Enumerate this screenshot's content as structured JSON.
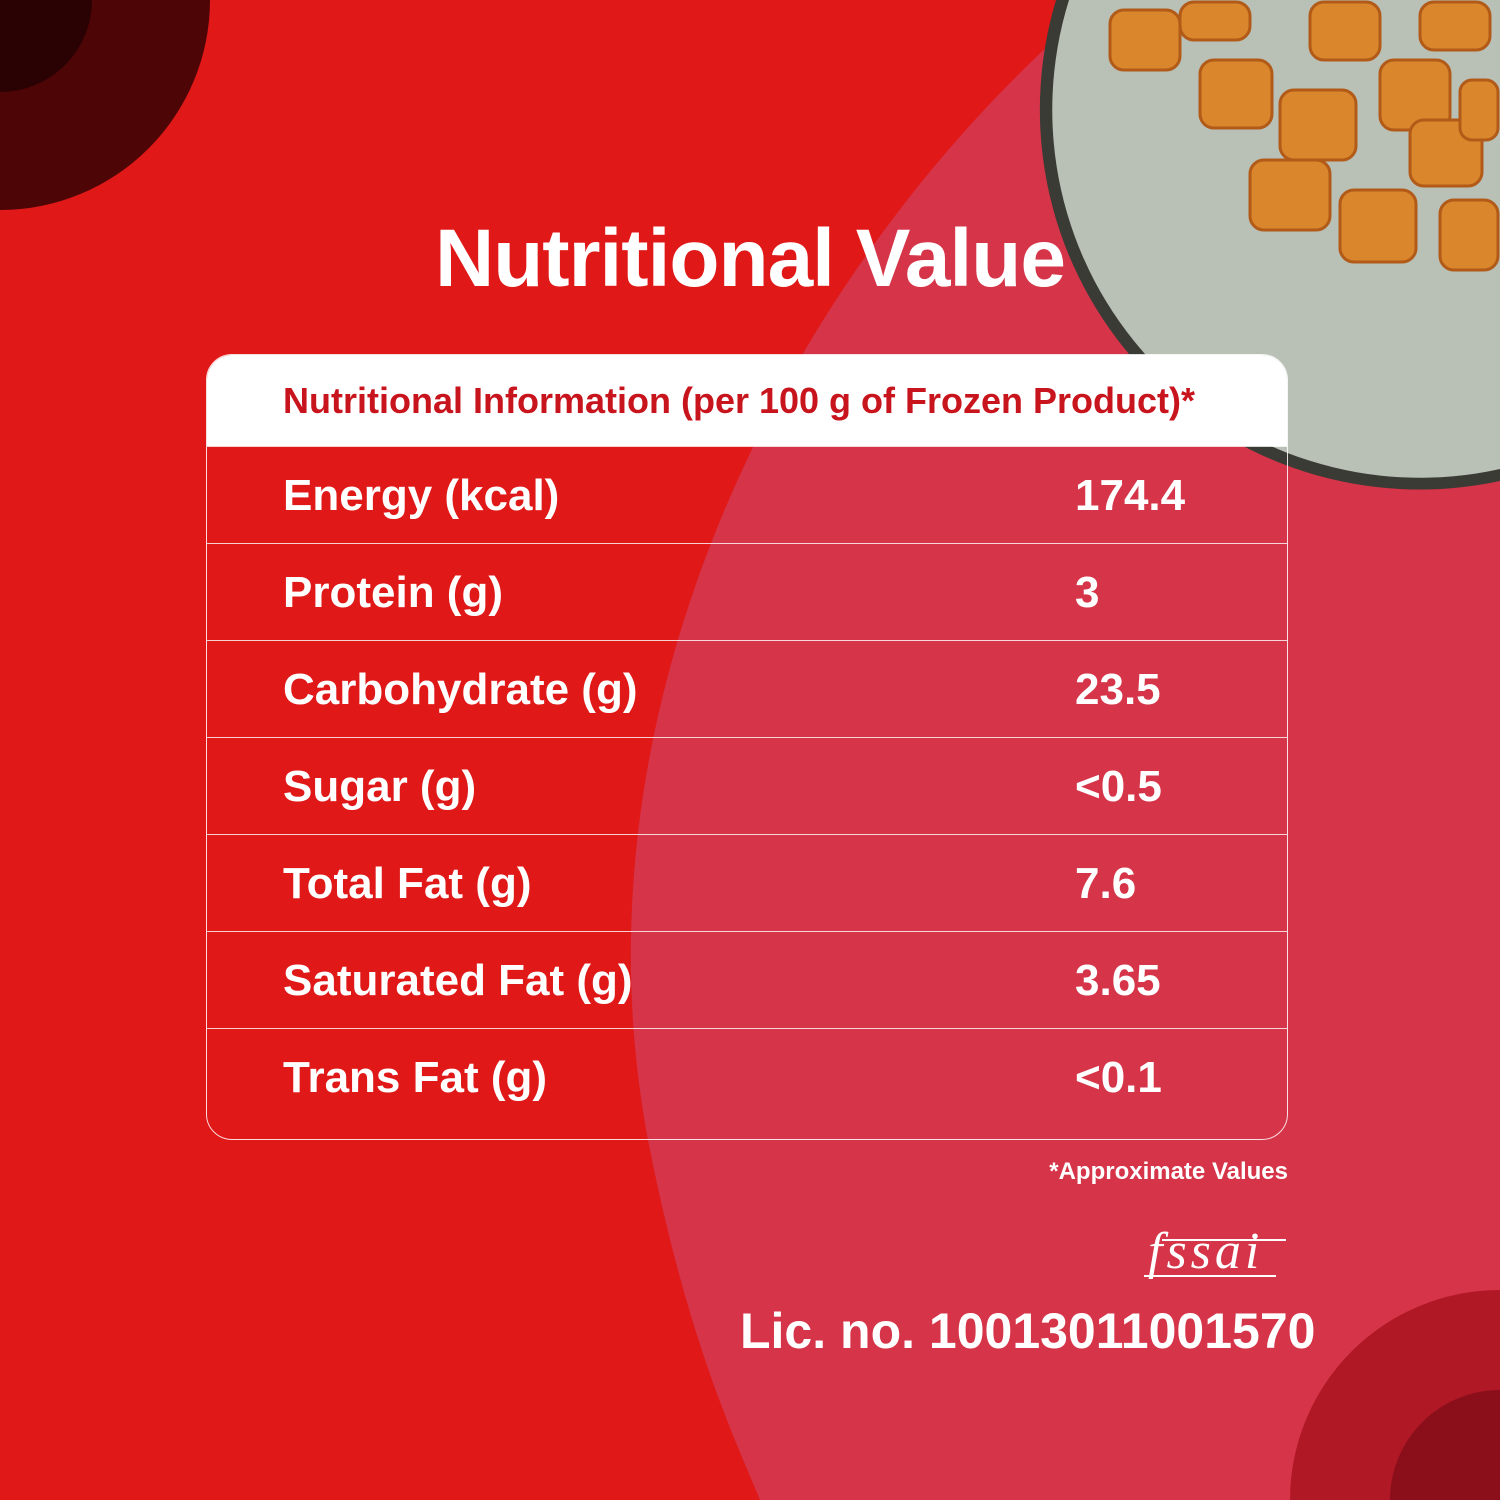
{
  "title": "Nutritional Value",
  "table": {
    "header": "Nutritional Information (per 100 g of Frozen Product)*",
    "rows": [
      {
        "label": "Energy (kcal)",
        "value": "174.4"
      },
      {
        "label": "Protein (g)",
        "value": "3"
      },
      {
        "label": "Carbohydrate (g)",
        "value": "23.5"
      },
      {
        "label": "Sugar (g)",
        "value": "<0.5"
      },
      {
        "label": "Total Fat (g)",
        "value": "7.6"
      },
      {
        "label": "Saturated Fat (g)",
        "value": "3.65"
      },
      {
        "label": "Trans Fat (g)",
        "value": "<0.1"
      }
    ]
  },
  "footnote": "*Approximate Values",
  "logo_text": "fssai",
  "license": "Lic. no. 10013011001570",
  "colors": {
    "background": "#e01818",
    "accent_region": "#d63448",
    "header_text": "#c8141c"
  }
}
